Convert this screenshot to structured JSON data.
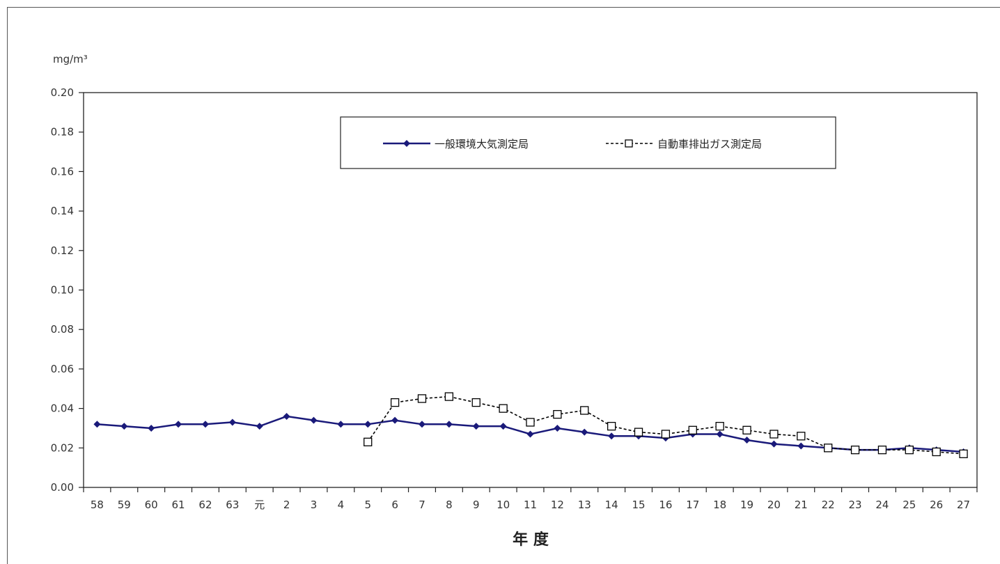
{
  "chart_data": {
    "type": "line",
    "ylabel": "mg/m³",
    "xlabel": "年 度",
    "ylim": [
      0,
      0.2
    ],
    "yticks": [
      "0.00",
      "0.02",
      "0.04",
      "0.06",
      "0.08",
      "0.10",
      "0.12",
      "0.14",
      "0.16",
      "0.18",
      "0.20"
    ],
    "categories": [
      "58",
      "59",
      "60",
      "61",
      "62",
      "63",
      "元",
      "2",
      "3",
      "4",
      "5",
      "6",
      "7",
      "8",
      "9",
      "10",
      "11",
      "12",
      "13",
      "14",
      "15",
      "16",
      "17",
      "18",
      "19",
      "20",
      "21",
      "22",
      "23",
      "24",
      "25",
      "26",
      "27"
    ],
    "grid": false,
    "legend_position": "top-center",
    "series": [
      {
        "name": "一般環境大気測定局",
        "color": "#1a1a7a",
        "style": "solid",
        "marker": "diamond",
        "values": [
          0.032,
          0.031,
          0.03,
          0.032,
          0.032,
          0.033,
          0.031,
          0.036,
          0.034,
          0.032,
          0.032,
          0.034,
          0.032,
          0.032,
          0.031,
          0.031,
          0.027,
          0.03,
          0.028,
          0.026,
          0.026,
          0.025,
          0.027,
          0.027,
          0.024,
          0.022,
          0.021,
          0.02,
          0.019,
          0.019,
          0.02,
          0.019,
          0.018
        ]
      },
      {
        "name": "自動車排出ガス測定局",
        "color": "#000000",
        "style": "dashed",
        "marker": "square",
        "values": [
          null,
          null,
          null,
          null,
          null,
          null,
          null,
          null,
          null,
          null,
          0.023,
          0.043,
          0.045,
          0.046,
          0.043,
          0.04,
          0.033,
          0.037,
          0.039,
          0.031,
          0.028,
          0.027,
          0.029,
          0.031,
          0.029,
          0.027,
          0.026,
          0.02,
          0.019,
          0.019,
          0.019,
          0.018,
          0.017
        ]
      }
    ]
  }
}
